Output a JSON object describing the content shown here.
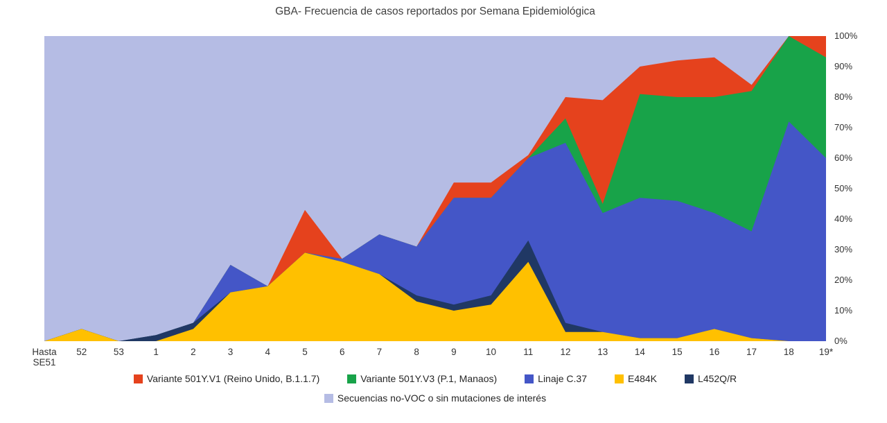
{
  "title": "GBA- Frecuencia de casos reportados por Semana Epidemiológica",
  "chart_data": {
    "type": "area",
    "stacked": true,
    "percent_axis": true,
    "grid": false,
    "legend_position": "bottom",
    "ylim": [
      0,
      100
    ],
    "yticks": [
      "0%",
      "10%",
      "20%",
      "30%",
      "40%",
      "50%",
      "60%",
      "70%",
      "80%",
      "90%",
      "100%"
    ],
    "xlabel": "",
    "ylabel": "",
    "categories": [
      "Hasta SE51",
      "52",
      "53",
      "1",
      "2",
      "3",
      "4",
      "5",
      "6",
      "7",
      "8",
      "9",
      "10",
      "11",
      "12",
      "13",
      "14",
      "15",
      "16",
      "17",
      "18",
      "19*"
    ],
    "series": [
      {
        "name": "E484K",
        "color": "#FFC000",
        "values": [
          0,
          4,
          0,
          0,
          4,
          16,
          18,
          29,
          26,
          22,
          13,
          10,
          12,
          26,
          3,
          3,
          1,
          1,
          4,
          1,
          0,
          0
        ]
      },
      {
        "name": "L452Q/R",
        "color": "#203864",
        "values": [
          0,
          0,
          0,
          2,
          2,
          0,
          0,
          0,
          0,
          0,
          2,
          2,
          3,
          7,
          3,
          0,
          0,
          0,
          0,
          0,
          0,
          0
        ]
      },
      {
        "name": "Linaje C.37",
        "color": "#4456C7",
        "values": [
          0,
          0,
          0,
          0,
          0,
          9,
          0,
          0,
          1,
          13,
          16,
          35,
          32,
          27,
          59,
          39,
          46,
          45,
          38,
          35,
          72,
          60
        ]
      },
      {
        "name": "Variante 501Y.V3 (P.1, Manaos)",
        "color": "#18A349",
        "values": [
          0,
          0,
          0,
          0,
          0,
          0,
          0,
          0,
          0,
          0,
          0,
          0,
          0,
          0,
          8,
          3,
          34,
          34,
          38,
          46,
          28,
          33
        ]
      },
      {
        "name": "Variante 501Y.V1 (Reino Unido, B.1.1.7)",
        "color": "#E5421D",
        "values": [
          0,
          0,
          0,
          0,
          0,
          0,
          0,
          14,
          0,
          0,
          0,
          5,
          5,
          1,
          7,
          34,
          9,
          12,
          13,
          2,
          0,
          7
        ]
      }
    ],
    "background_series": {
      "name": "Secuencias no-VOC o sin mutaciones de interés",
      "color": "#B5BCE4"
    },
    "legend_rows": [
      [
        "Variante 501Y.V1 (Reino Unido, B.1.1.7)",
        "Variante 501Y.V3 (P.1, Manaos)",
        "Linaje C.37",
        "E484K",
        "L452Q/R"
      ],
      [
        "Secuencias no-VOC o sin mutaciones de interés"
      ]
    ]
  }
}
